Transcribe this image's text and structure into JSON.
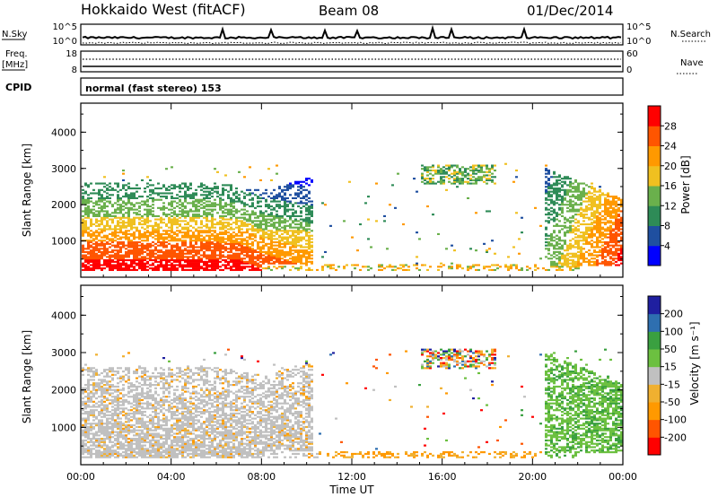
{
  "header": {
    "station": "Hokkaido West (fitACF)",
    "beam": "Beam 08",
    "date": "01/Dec/2014"
  },
  "top_panels": {
    "nsky_label": "N.Sky",
    "nsky_ticks": [
      "10^5",
      "10^0"
    ],
    "nsearch_label": "N.Search",
    "freq_label": "Freq.",
    "freq_unit": "[MHz]",
    "freq_ticks": [
      "18",
      "8"
    ],
    "nave_label": "Nave",
    "nave_ticks": [
      "60",
      "0"
    ],
    "cpid_label": "CPID",
    "cpid_text": "normal (fast stereo) 153"
  },
  "colors": {
    "power_scale": [
      "#0000ff",
      "#1f4fa0",
      "#2e8b57",
      "#6ab04c",
      "#f0c020",
      "#ff9900",
      "#ff5500",
      "#ff0000"
    ],
    "velocity_scale": [
      "#ff0000",
      "#ff5500",
      "#ff9900",
      "#f0b030",
      "#c0c0c0",
      "#6cc040",
      "#3aa040",
      "#2e6fb0",
      "#1f1fa0"
    ],
    "gray": "#c0c0c0"
  },
  "chart_data": [
    {
      "type": "heatmap",
      "panel": "power",
      "ylabel": "Slant Range [km]",
      "yticks": [
        "1000",
        "2000",
        "3000",
        "4000"
      ],
      "ylim": [
        0,
        4800
      ],
      "xticks": [
        "00:00",
        "04:00",
        "08:00",
        "12:00",
        "16:00",
        "20:00",
        "00:00"
      ],
      "xlim_hours": [
        0,
        24
      ],
      "colorbar_label": "Power [dB]",
      "colorbar_ticks": [
        "4",
        "8",
        "12",
        "16",
        "20",
        "24",
        "28"
      ],
      "colorbar_range": [
        0,
        32
      ]
    },
    {
      "type": "heatmap",
      "panel": "velocity",
      "ylabel": "Slant Range [km]",
      "yticks": [
        "1000",
        "2000",
        "3000",
        "4000"
      ],
      "ylim": [
        0,
        4800
      ],
      "xticks": [
        "00:00",
        "04:00",
        "08:00",
        "12:00",
        "16:00",
        "20:00",
        "00:00"
      ],
      "xlabel": "Time UT",
      "colorbar_label": "Velocity [m s⁻¹]",
      "colorbar_ticks": [
        "-200",
        "-100",
        "-50",
        "-15",
        "15",
        "50",
        "100",
        "200"
      ]
    }
  ]
}
